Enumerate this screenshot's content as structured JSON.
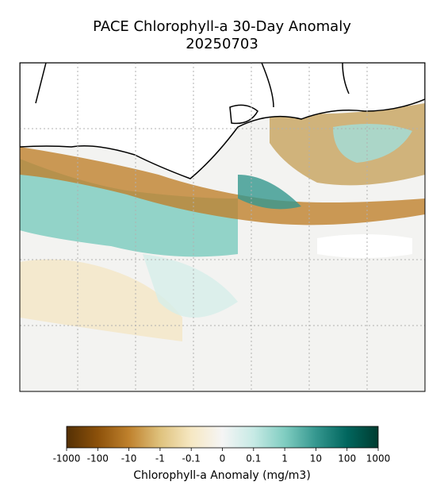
{
  "title": [
    "PACE Chlorophyll-a 30-Day Anomaly",
    "20250703"
  ],
  "colorbar": {
    "label": "Chlorophyll-a Anomaly (mg/m3)",
    "scale": "symlog",
    "linthresh": 0.1,
    "lim": [
      -1000,
      1000
    ],
    "ticks": [
      -1000,
      -100,
      -10,
      -1,
      -0.1,
      0,
      0.1,
      1,
      10,
      100,
      1000
    ],
    "colors": [
      "#543005",
      "#8c510a",
      "#bf812d",
      "#dfc27d",
      "#f6e8c3",
      "#f5f5f5",
      "#c7eae5",
      "#80cdc1",
      "#35978f",
      "#01665e",
      "#003c30"
    ]
  }
}
